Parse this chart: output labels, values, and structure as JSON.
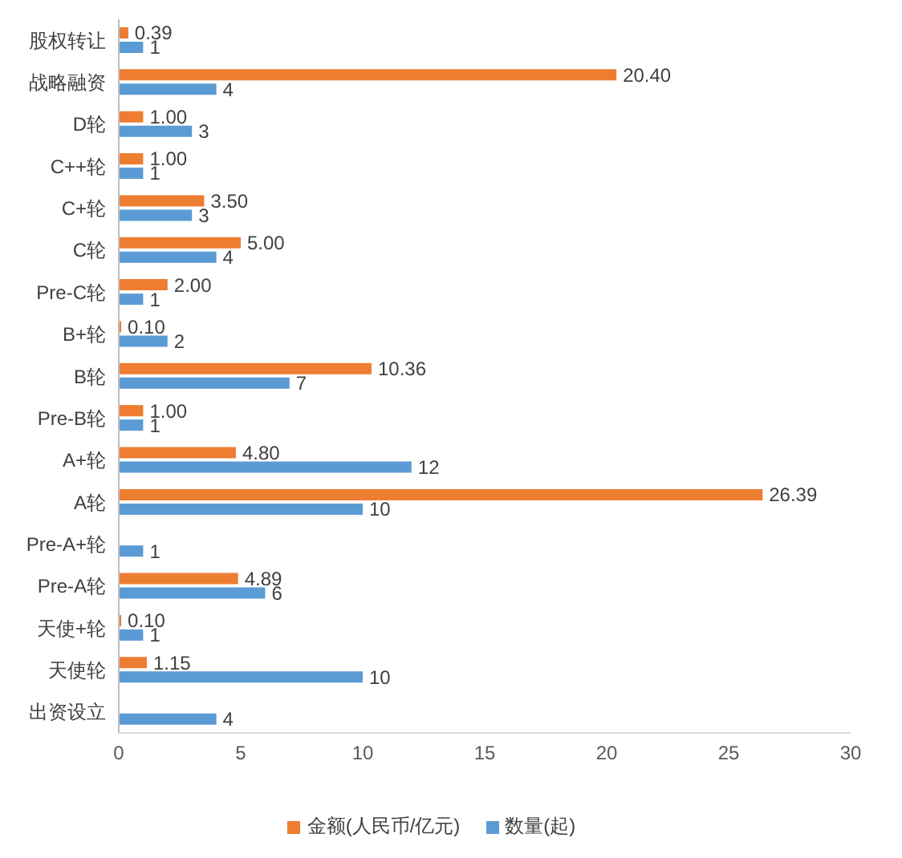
{
  "chart_data": {
    "type": "bar",
    "orientation": "horizontal",
    "categories": [
      "股权转让",
      "战略融资",
      "D轮",
      "C++轮",
      "C+轮",
      "C轮",
      "Pre-C轮",
      "B+轮",
      "B轮",
      "Pre-B轮",
      "A+轮",
      "A轮",
      "Pre-A+轮",
      "Pre-A轮",
      "天使+轮",
      "天使轮",
      "出资设立"
    ],
    "series": [
      {
        "name": "金额(人民币/亿元)",
        "color": "#ed7d31",
        "values": [
          0.39,
          20.4,
          1,
          1,
          3.5,
          5,
          2,
          0.1,
          10.36,
          1,
          4.8,
          26.39,
          null,
          4.89,
          0.1,
          1.15,
          null
        ],
        "value_labels": [
          "0.39",
          "20.40",
          "1.00",
          "1.00",
          "3.50",
          "5.00",
          "2.00",
          "0.10",
          "10.36",
          "1.00",
          "4.80",
          "26.39",
          null,
          "4.89",
          "0.10",
          "1.15",
          null
        ]
      },
      {
        "name": "数量(起)",
        "color": "#5b9bd5",
        "values": [
          1,
          4,
          3,
          1,
          3,
          4,
          1,
          2,
          7,
          1,
          12,
          10,
          1,
          6,
          1,
          10,
          4
        ],
        "value_labels": [
          "1",
          "4",
          "3",
          "1",
          "3",
          "4",
          "1",
          "2",
          "7",
          "1",
          "12",
          "10",
          "1",
          "6",
          "1",
          "10",
          "4"
        ]
      }
    ],
    "xlim": [
      0,
      30
    ],
    "xticks": [
      0,
      5,
      10,
      15,
      20,
      25,
      30
    ],
    "grid": false,
    "legend": "bottom"
  }
}
